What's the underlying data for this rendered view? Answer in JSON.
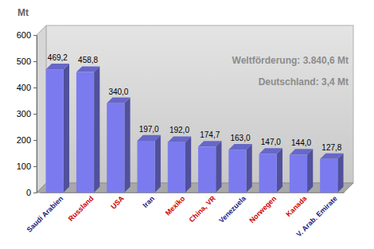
{
  "chart_data": {
    "type": "bar",
    "ylabel": "Mt",
    "categories": [
      "Saudi Arabien",
      "Russland",
      "USA",
      "Iran",
      "Mexiko",
      "China, VR",
      "Venezuela",
      "Norwegen",
      "Kanada",
      "V. Arab. Emirate"
    ],
    "values": [
      469.2,
      458.8,
      340.0,
      197.0,
      192.0,
      174.7,
      163.0,
      147.0,
      144.0,
      127.8
    ],
    "value_labels": [
      "469,2",
      "458,8",
      "340,0",
      "197,0",
      "192,0",
      "174,7",
      "163,0",
      "147,0",
      "144,0",
      "127,8"
    ],
    "color": "#7b7bef",
    "ylim": [
      0,
      600
    ],
    "yticks": [
      0,
      100,
      200,
      300,
      400,
      500,
      600
    ],
    "grid": false,
    "data_labels": true,
    "annotations": [
      "Weltförderung: 3.840,6 Mt",
      "Deutschland: 3,4 Mt"
    ]
  }
}
